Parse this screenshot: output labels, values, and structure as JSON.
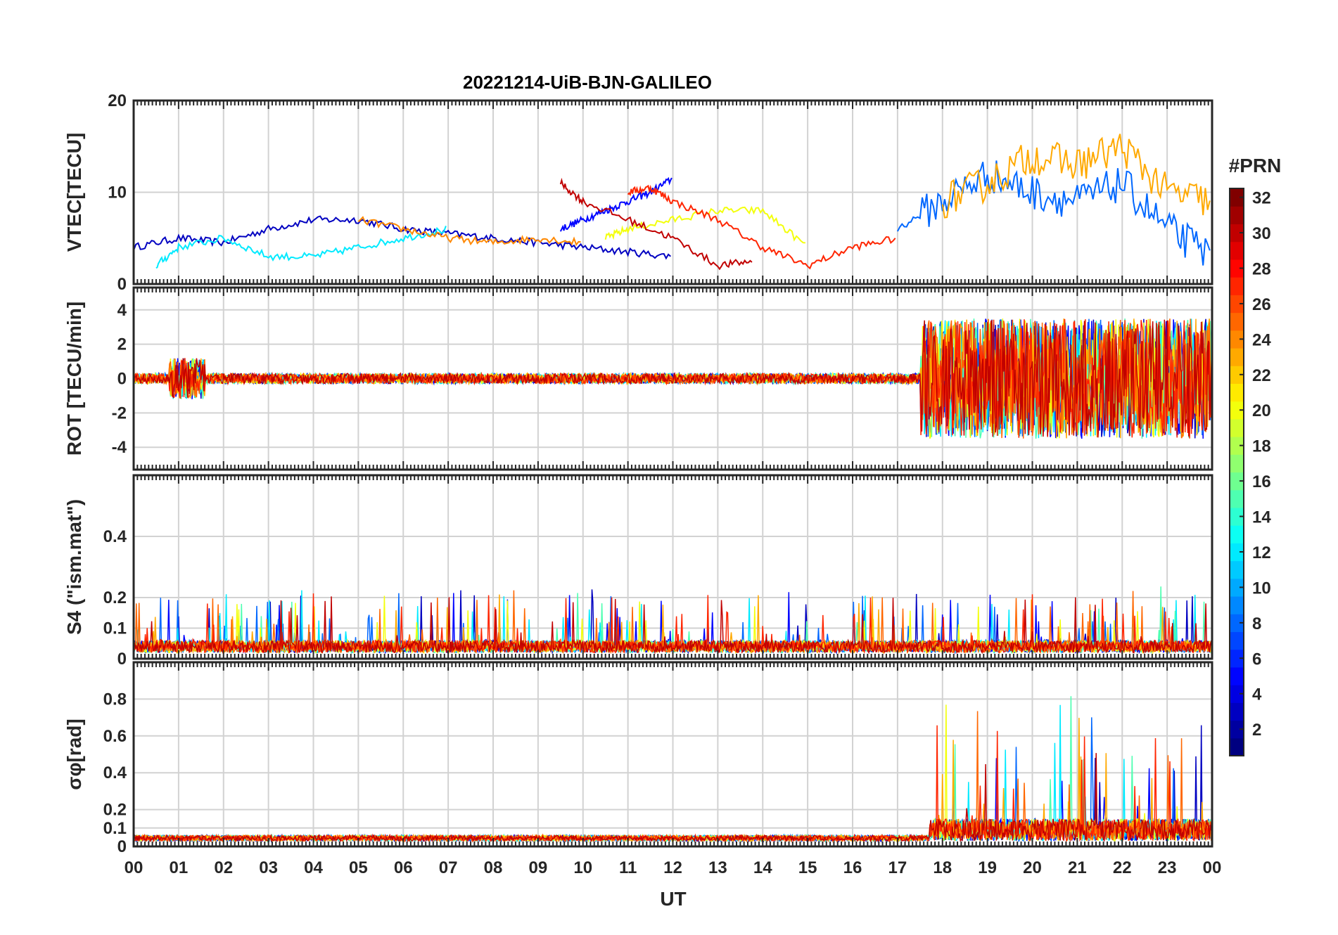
{
  "chart_data": {
    "title": "20221214-UiB-BJN-GALILEO",
    "type": "line",
    "xlabel": "UT",
    "x_ticks": [
      "00",
      "01",
      "02",
      "03",
      "04",
      "05",
      "06",
      "07",
      "08",
      "09",
      "10",
      "11",
      "12",
      "13",
      "14",
      "15",
      "16",
      "17",
      "18",
      "19",
      "20",
      "21",
      "22",
      "23",
      "00"
    ],
    "xlim": [
      0,
      24
    ],
    "colorbar": {
      "label": "#PRN",
      "range": [
        1,
        32
      ],
      "ticks": [
        "2",
        "4",
        "6",
        "8",
        "10",
        "12",
        "14",
        "16",
        "18",
        "20",
        "22",
        "24",
        "26",
        "28",
        "30",
        "32"
      ],
      "colormap": "jet"
    },
    "panels": [
      {
        "ylabel": "VTEC[TECU]",
        "ylim": [
          0,
          20
        ],
        "y_ticks": [
          "0",
          "10",
          "20"
        ],
        "series": [
          {
            "prn": 3,
            "x": [
              0,
              1,
              2,
              3,
              4,
              5,
              6,
              7,
              8,
              9,
              10,
              11,
              12
            ],
            "y": [
              4,
              5,
              4.5,
              6,
              7,
              7,
              6,
              5.5,
              5,
              4.5,
              4,
              3.5,
              3
            ]
          },
          {
            "prn": 5,
            "x": [
              9.5,
              10,
              10.5,
              11,
              11.5,
              12
            ],
            "y": [
              6,
              7,
              8,
              9,
              10,
              11.5
            ]
          },
          {
            "prn": 12,
            "x": [
              0.5,
              1,
              2,
              3,
              4,
              5,
              6,
              7
            ],
            "y": [
              2,
              4,
              5,
              3,
              3,
              4,
              5,
              6
            ]
          },
          {
            "prn": 20,
            "x": [
              10.5,
              11,
              12,
              13,
              14,
              15
            ],
            "y": [
              5,
              6,
              7,
              8,
              8,
              4
            ]
          },
          {
            "prn": 24,
            "x": [
              5,
              6,
              7,
              8,
              9,
              10
            ],
            "y": [
              7,
              6,
              5,
              4.5,
              5,
              4.5
            ]
          },
          {
            "prn": 27,
            "x": [
              11,
              11.5,
              12,
              13,
              14,
              15,
              16,
              17
            ],
            "y": [
              10,
              10.5,
              9,
              7,
              4,
              2,
              4,
              5
            ]
          },
          {
            "prn": 30,
            "x": [
              9.5,
              10,
              11,
              12,
              13,
              13.8
            ],
            "y": [
              11,
              9,
              7,
              5,
              2,
              2.5
            ]
          },
          {
            "prn": 8,
            "x": [
              17,
              18,
              19,
              20,
              21,
              22,
              23,
              24
            ],
            "y": [
              6,
              9,
              12,
              10,
              9,
              11,
              6,
              3
            ]
          },
          {
            "prn": 23,
            "x": [
              18,
              19,
              20,
              21,
              22,
              23,
              24
            ],
            "y": [
              9,
              11,
              14,
              13,
              15,
              10,
              9
            ]
          }
        ]
      },
      {
        "ylabel": "ROT [TECU/min]",
        "ylim": [
          -5.3,
          5.3
        ],
        "y_ticks": [
          "-4",
          "-2",
          "0",
          "2",
          "4"
        ],
        "series": []
      },
      {
        "ylabel": "S4 (\"ism.mat\")",
        "ylim": [
          0,
          0.6
        ],
        "y_ticks": [
          "0",
          "0.1",
          "0.2",
          "0.4"
        ],
        "series": []
      },
      {
        "ylabel": "σφ[rad]",
        "ylim": [
          0,
          1
        ],
        "y_ticks": [
          "0",
          "0.1",
          "0.2",
          "0.4",
          "0.6",
          "0.8"
        ],
        "series": []
      }
    ]
  }
}
